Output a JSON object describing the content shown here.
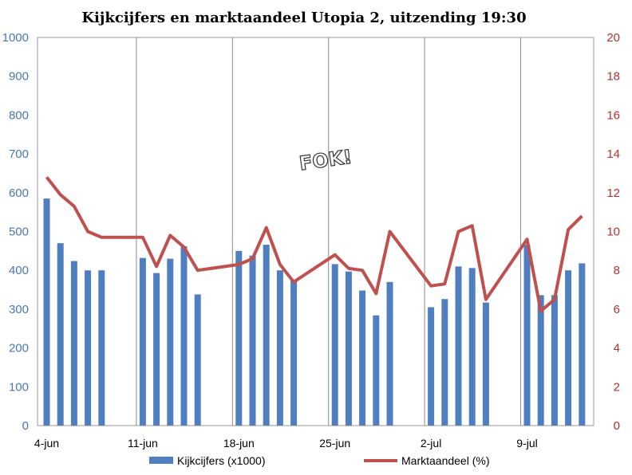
{
  "chart_data": {
    "type": "bar",
    "title": "Kijkcijfers en marktaandeel Utopia 2,  uitzending 19:30",
    "x_tick_labels": [
      "4-jun",
      "11-jun",
      "18-jun",
      "25-jun",
      "2-jul",
      "9-jul"
    ],
    "y_left": {
      "range": [
        0,
        1000
      ],
      "ticks": [
        "0",
        "100",
        "200",
        "300",
        "400",
        "500",
        "600",
        "700",
        "800",
        "900",
        "1000"
      ]
    },
    "y_right": {
      "range": [
        0,
        20
      ],
      "ticks": [
        "0",
        "2",
        "4",
        "6",
        "8",
        "10",
        "12",
        "14",
        "16",
        "18",
        "20"
      ]
    },
    "grid": "vertical lines at week starts",
    "legend_position": "bottom",
    "days": [
      "4-jun",
      "5-jun",
      "6-jun",
      "7-jun",
      "8-jun",
      "11-jun",
      "12-jun",
      "13-jun",
      "14-jun",
      "15-jun",
      "18-jun",
      "19-jun",
      "20-jun",
      "21-jun",
      "22-jun",
      "25-jun",
      "26-jun",
      "27-jun",
      "28-jun",
      "29-jun",
      "2-jul",
      "3-jul",
      "4-jul",
      "5-jul",
      "6-jul",
      "9-jul",
      "10-jul",
      "11-jul",
      "12-jul",
      "13-jul"
    ],
    "day_offsets": [
      0,
      1,
      2,
      3,
      4,
      7,
      8,
      9,
      10,
      11,
      14,
      15,
      16,
      17,
      18,
      21,
      22,
      23,
      24,
      25,
      28,
      29,
      30,
      31,
      32,
      35,
      36,
      37,
      38,
      39
    ],
    "series": [
      {
        "name": "Kijkcijfers (x1000)",
        "type": "bar",
        "axis": "left",
        "color": "#4f7fc0",
        "values": [
          585,
          470,
          424,
          400,
          400,
          432,
          393,
          430,
          462,
          338,
          450,
          438,
          466,
          400,
          374,
          416,
          397,
          348,
          284,
          370,
          305,
          326,
          410,
          406,
          317,
          466,
          336,
          336,
          400,
          418
        ]
      },
      {
        "name": "Marktaandeel (%)",
        "type": "line",
        "axis": "right",
        "color": "#c0504d",
        "values": [
          12.8,
          11.9,
          11.3,
          10.0,
          9.7,
          9.7,
          8.2,
          9.8,
          9.2,
          8.0,
          8.3,
          8.6,
          10.2,
          8.3,
          7.4,
          8.8,
          8.1,
          8.0,
          6.8,
          10.0,
          7.2,
          7.3,
          10.0,
          10.3,
          6.5,
          9.6,
          5.9,
          6.5,
          10.1,
          10.8
        ]
      }
    ]
  },
  "legend": {
    "bars_label": "Kijkcijfers (x1000)",
    "line_label": "Marktaandeel (%)"
  },
  "watermark": "FOK!"
}
